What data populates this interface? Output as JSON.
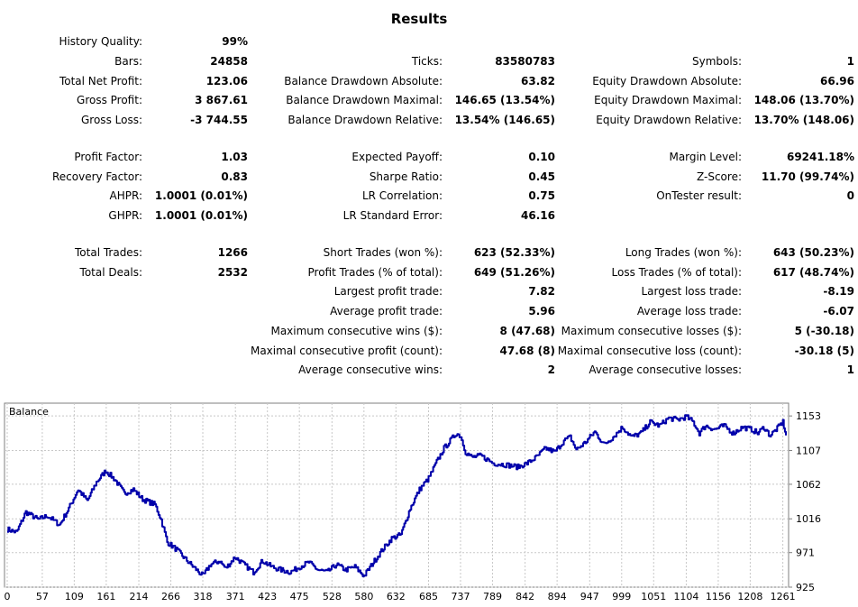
{
  "title": "Results",
  "col1": [
    {
      "label": "History Quality:",
      "value": "99%"
    },
    {
      "label": "Bars:",
      "value": "24858"
    },
    {
      "label": "Total Net Profit:",
      "value": "123.06"
    },
    {
      "label": "Gross Profit:",
      "value": "3 867.61"
    },
    {
      "label": "Gross Loss:",
      "value": "-3 744.55"
    },
    {
      "label": "Profit Factor:",
      "value": "1.03"
    },
    {
      "label": "Recovery Factor:",
      "value": "0.83"
    },
    {
      "label": "AHPR:",
      "value": "1.0001 (0.01%)"
    },
    {
      "label": "GHPR:",
      "value": "1.0001 (0.01%)"
    },
    {
      "label": "Total Trades:",
      "value": "1266"
    },
    {
      "label": "Total Deals:",
      "value": "2532"
    }
  ],
  "col2": [
    {
      "label": "Ticks:",
      "value": "83580783"
    },
    {
      "label": "Balance Drawdown Absolute:",
      "value": "63.82"
    },
    {
      "label": "Balance Drawdown Maximal:",
      "value": "146.65 (13.54%)"
    },
    {
      "label": "Balance Drawdown Relative:",
      "value": "13.54% (146.65)"
    },
    {
      "label": "Expected Payoff:",
      "value": "0.10"
    },
    {
      "label": "Sharpe Ratio:",
      "value": "0.45"
    },
    {
      "label": "LR Correlation:",
      "value": "0.75"
    },
    {
      "label": "LR Standard Error:",
      "value": "46.16"
    },
    {
      "label": "Short Trades (won %):",
      "value": "623 (52.33%)"
    },
    {
      "label": "Profit Trades (% of total):",
      "value": "649 (51.26%)"
    },
    {
      "label": "Largest profit trade:",
      "value": "7.82"
    },
    {
      "label": "Average profit trade:",
      "value": "5.96"
    },
    {
      "label": "Maximum consecutive wins ($):",
      "value": "8 (47.68)"
    },
    {
      "label": "Maximal consecutive profit (count):",
      "value": "47.68 (8)"
    },
    {
      "label": "Average consecutive wins:",
      "value": "2"
    }
  ],
  "col3": [
    {
      "label": "Symbols:",
      "value": "1"
    },
    {
      "label": "Equity Drawdown Absolute:",
      "value": "66.96"
    },
    {
      "label": "Equity Drawdown Maximal:",
      "value": "148.06 (13.70%)"
    },
    {
      "label": "Equity Drawdown Relative:",
      "value": "13.70% (148.06)"
    },
    {
      "label": "Margin Level:",
      "value": "69241.18%"
    },
    {
      "label": "Z-Score:",
      "value": "11.70 (99.74%)"
    },
    {
      "label": "OnTester result:",
      "value": "0"
    },
    {
      "label": "Long Trades (won %):",
      "value": "643 (50.23%)"
    },
    {
      "label": "Loss Trades (% of total):",
      "value": "617 (48.74%)"
    },
    {
      "label": "Largest loss trade:",
      "value": "-8.19"
    },
    {
      "label": "Average loss trade:",
      "value": "-6.07"
    },
    {
      "label": "Maximum consecutive losses ($):",
      "value": "5 (-30.18)"
    },
    {
      "label": "Maximal consecutive loss (count):",
      "value": "-30.18 (5)"
    },
    {
      "label": "Average consecutive losses:",
      "value": "1"
    }
  ],
  "chart_data": {
    "type": "line",
    "title": "Balance",
    "xlabel": "",
    "ylabel": "",
    "xlim": [
      0,
      1266
    ],
    "ylim": [
      925,
      1170
    ],
    "x_ticks": [
      0,
      57,
      109,
      161,
      214,
      266,
      318,
      371,
      423,
      475,
      528,
      580,
      632,
      685,
      737,
      789,
      842,
      894,
      947,
      999,
      1051,
      1104,
      1156,
      1208,
      1261
    ],
    "y_ticks": [
      925,
      971,
      1016,
      1062,
      1107,
      1153
    ],
    "grid": true,
    "line_color": "#0000aa",
    "series": [
      {
        "x": [
          0,
          15,
          30,
          50,
          65,
          85,
          100,
          115,
          130,
          145,
          160,
          175,
          190,
          205,
          220,
          240,
          250,
          260,
          275,
          290,
          305,
          318,
          330,
          345,
          355,
          370,
          385,
          400,
          415,
          430,
          445,
          460,
          475,
          490,
          505,
          520,
          535,
          550,
          565,
          580,
          595,
          610,
          625,
          640,
          655,
          670,
          685,
          700,
          710,
          720,
          730,
          737,
          745,
          755,
          770,
          790,
          810,
          830,
          845,
          860,
          875,
          890,
          905,
          915,
          925,
          940,
          955,
          970,
          985,
          1000,
          1015,
          1030,
          1045,
          1060,
          1075,
          1090,
          1104,
          1115,
          1125,
          1135,
          1150,
          1165,
          1180,
          1195,
          1210,
          1220,
          1230,
          1240,
          1250,
          1261,
          1266
        ],
        "y": [
          1002,
          998,
          1025,
          1015,
          1020,
          1008,
          1030,
          1055,
          1040,
          1065,
          1080,
          1068,
          1050,
          1055,
          1042,
          1035,
          1015,
          985,
          975,
          962,
          950,
          940,
          955,
          960,
          950,
          965,
          955,
          945,
          960,
          952,
          948,
          945,
          952,
          958,
          948,
          945,
          955,
          948,
          952,
          940,
          958,
          975,
          990,
          995,
          1030,
          1055,
          1070,
          1095,
          1110,
          1120,
          1130,
          1126,
          1105,
          1098,
          1100,
          1090,
          1088,
          1085,
          1090,
          1098,
          1110,
          1105,
          1120,
          1125,
          1108,
          1118,
          1132,
          1115,
          1125,
          1138,
          1125,
          1130,
          1145,
          1140,
          1150,
          1148,
          1152,
          1145,
          1130,
          1140,
          1135,
          1140,
          1130,
          1138,
          1135,
          1130,
          1138,
          1127,
          1135,
          1145,
          1127
        ]
      }
    ]
  }
}
